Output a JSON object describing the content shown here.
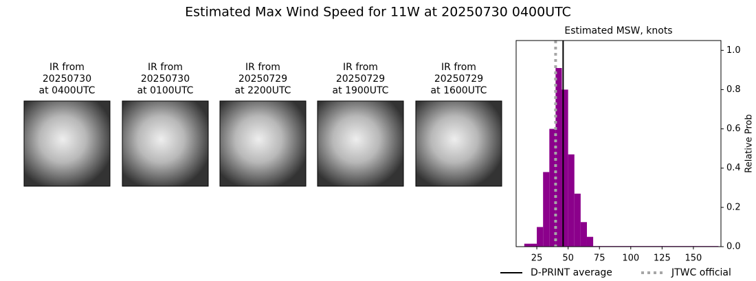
{
  "title": "Estimated Max Wind Speed for 11W at 20250730 0400UTC",
  "panels": [
    {
      "lines": [
        "IR from",
        "20250730",
        "at 0400UTC"
      ]
    },
    {
      "lines": [
        "IR from",
        "20250730",
        "at 0100UTC"
      ]
    },
    {
      "lines": [
        "IR from",
        "20250729",
        "at 2200UTC"
      ]
    },
    {
      "lines": [
        "IR from",
        "20250729",
        "at 1900UTC"
      ]
    },
    {
      "lines": [
        "IR from",
        "20250729",
        "at 1600UTC"
      ]
    }
  ],
  "chart_data": {
    "type": "histogram",
    "title": "Estimated MSW, knots",
    "y_label": "Relative Prob",
    "color": "#8b008b",
    "bins": [
      15,
      20,
      25,
      30,
      35,
      40,
      45,
      50,
      55,
      60,
      65,
      70,
      170
    ],
    "values": [
      0.015,
      0.015,
      0.1,
      0.38,
      0.6,
      0.91,
      0.8,
      0.47,
      0.27,
      0.125,
      0.05,
      0.003
    ],
    "xlim": [
      8.5,
      172
    ],
    "ylim": [
      0,
      1.05
    ],
    "xticks": [
      25,
      50,
      75,
      100,
      125,
      150
    ],
    "yticks": [
      {
        "value": 0,
        "label": "0.0"
      },
      0.2,
      0.4,
      0.6,
      0.8,
      {
        "value": 1,
        "label": "1.0"
      }
    ],
    "lines": [
      {
        "name": "D-PRINT average",
        "value": 46,
        "color": "#000000",
        "style": "solid"
      },
      {
        "name": "JTWC official",
        "value": 40,
        "color": "#a6a6a6",
        "style": "dotted"
      }
    ]
  }
}
